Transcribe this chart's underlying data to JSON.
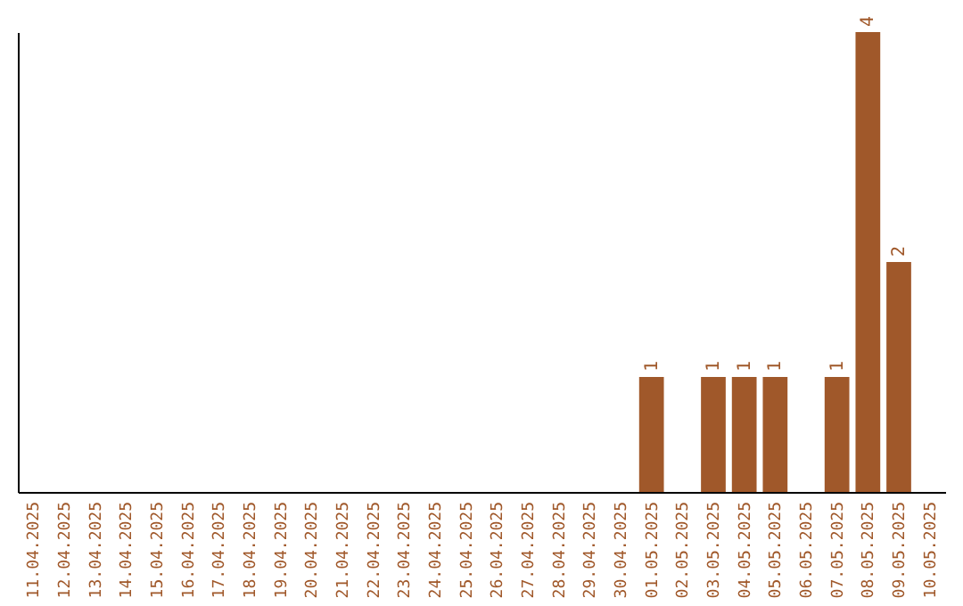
{
  "chart_data": {
    "type": "bar",
    "categories": [
      "11.04.2025",
      "12.04.2025",
      "13.04.2025",
      "14.04.2025",
      "15.04.2025",
      "16.04.2025",
      "17.04.2025",
      "18.04.2025",
      "19.04.2025",
      "20.04.2025",
      "21.04.2025",
      "22.04.2025",
      "23.04.2025",
      "24.04.2025",
      "25.04.2025",
      "26.04.2025",
      "27.04.2025",
      "28.04.2025",
      "29.04.2025",
      "30.04.2025",
      "01.05.2025",
      "02.05.2025",
      "03.05.2025",
      "04.05.2025",
      "05.05.2025",
      "06.05.2025",
      "07.05.2025",
      "08.05.2025",
      "09.05.2025",
      "10.05.2025"
    ],
    "values": [
      null,
      null,
      null,
      null,
      null,
      null,
      null,
      null,
      null,
      null,
      null,
      null,
      null,
      null,
      null,
      null,
      null,
      null,
      null,
      null,
      1,
      null,
      1,
      1,
      1,
      null,
      1,
      4,
      2,
      null
    ],
    "color": "#a0582a",
    "data_labels": true,
    "tick_labels": "x"
  }
}
